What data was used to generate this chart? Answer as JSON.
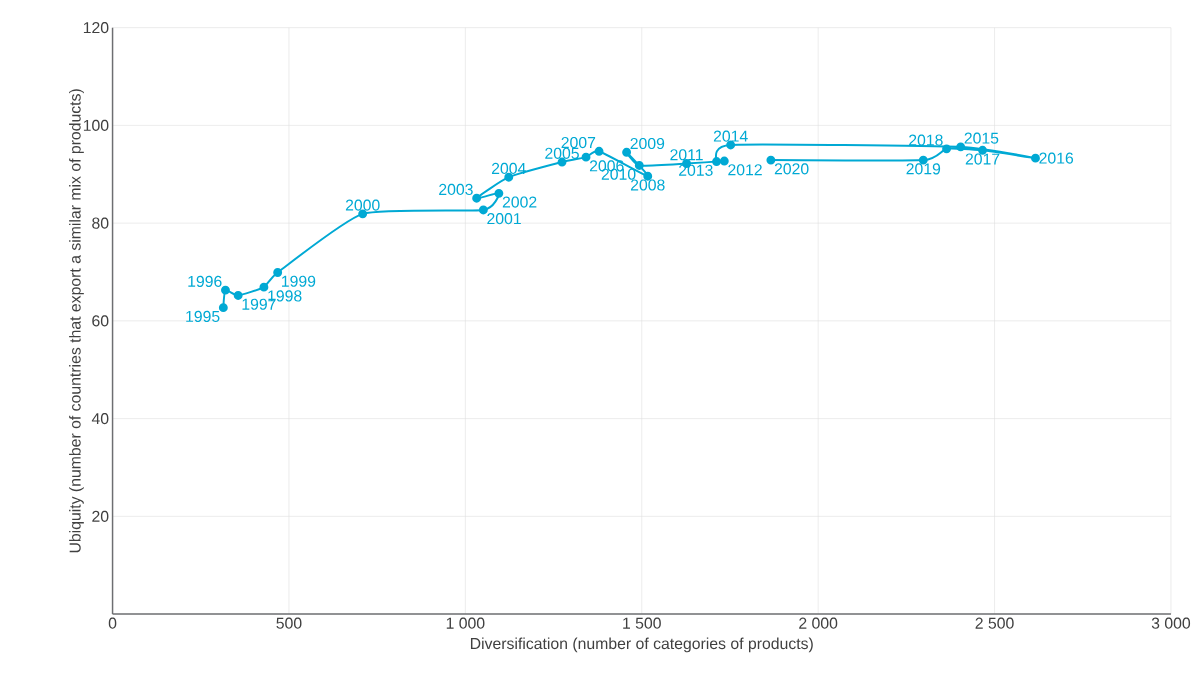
{
  "chart_data": {
    "type": "line",
    "xlabel": "Diversification (number of categories of products)",
    "ylabel": "Ubiquity  (number of countries that export a similar mix of products)",
    "x": [
      314,
      320,
      356,
      429,
      468,
      709,
      1051,
      1095,
      1032,
      1123,
      1274,
      1342,
      1379,
      1517,
      1457,
      1493,
      1627,
      1734,
      1712,
      1752,
      2404,
      2616,
      2466,
      2364,
      2298,
      1866
    ],
    "values": [
      62.7,
      66.3,
      65.2,
      66.9,
      69.9,
      81.9,
      82.7,
      86.1,
      85.1,
      89.4,
      92.5,
      93.5,
      94.7,
      89.6,
      94.5,
      91.8,
      92.2,
      92.7,
      92.6,
      96.0,
      95.6,
      93.3,
      94.9,
      95.2,
      92.9,
      92.9
    ],
    "color": "#00a9d4",
    "marker": "circle",
    "line_style": "solid",
    "grid": true,
    "xlim": [
      0,
      3000
    ],
    "ylim": [
      0,
      120
    ],
    "xticks": [
      0,
      500,
      {
        "value": 1000,
        "label": "1 000"
      },
      {
        "value": 1500,
        "label": "1 500"
      },
      {
        "value": 2000,
        "label": "2 000"
      },
      {
        "value": 2500,
        "label": "2 500"
      },
      {
        "value": 3000,
        "label": "3 000"
      }
    ],
    "yticks": [
      20,
      40,
      60,
      80,
      100,
      120
    ],
    "annotations": [
      {
        "text": "1995",
        "x": 314,
        "y": 62.7
      },
      {
        "text": "1996",
        "x": 320,
        "y": 66.3
      },
      {
        "text": "1997",
        "x": 356,
        "y": 65.2
      },
      {
        "text": "1998",
        "x": 429,
        "y": 66.9
      },
      {
        "text": "1999",
        "x": 468,
        "y": 69.9
      },
      {
        "text": "2000",
        "x": 709,
        "y": 81.9
      },
      {
        "text": "2001",
        "x": 1051,
        "y": 82.7
      },
      {
        "text": "2002",
        "x": 1095,
        "y": 86.1
      },
      {
        "text": "2003",
        "x": 1032,
        "y": 85.1
      },
      {
        "text": "2004",
        "x": 1123,
        "y": 89.4
      },
      {
        "text": "2005",
        "x": 1274,
        "y": 92.5
      },
      {
        "text": "2006",
        "x": 1342,
        "y": 93.5
      },
      {
        "text": "2007",
        "x": 1379,
        "y": 94.7
      },
      {
        "text": "2008",
        "x": 1517,
        "y": 89.6
      },
      {
        "text": "2009",
        "x": 1457,
        "y": 94.5
      },
      {
        "text": "2010",
        "x": 1493,
        "y": 91.8
      },
      {
        "text": "2011",
        "x": 1627,
        "y": 92.2
      },
      {
        "text": "2012",
        "x": 1734,
        "y": 92.7
      },
      {
        "text": "2013",
        "x": 1712,
        "y": 92.6
      },
      {
        "text": "2014",
        "x": 1752,
        "y": 96.0
      },
      {
        "text": "2015",
        "x": 2404,
        "y": 95.6
      },
      {
        "text": "2016",
        "x": 2616,
        "y": 93.3
      },
      {
        "text": "2017",
        "x": 2466,
        "y": 94.9
      },
      {
        "text": "2018",
        "x": 2364,
        "y": 95.2
      },
      {
        "text": "2019",
        "x": 2298,
        "y": 92.9
      },
      {
        "text": "2020",
        "x": 1866,
        "y": 92.9
      }
    ]
  }
}
